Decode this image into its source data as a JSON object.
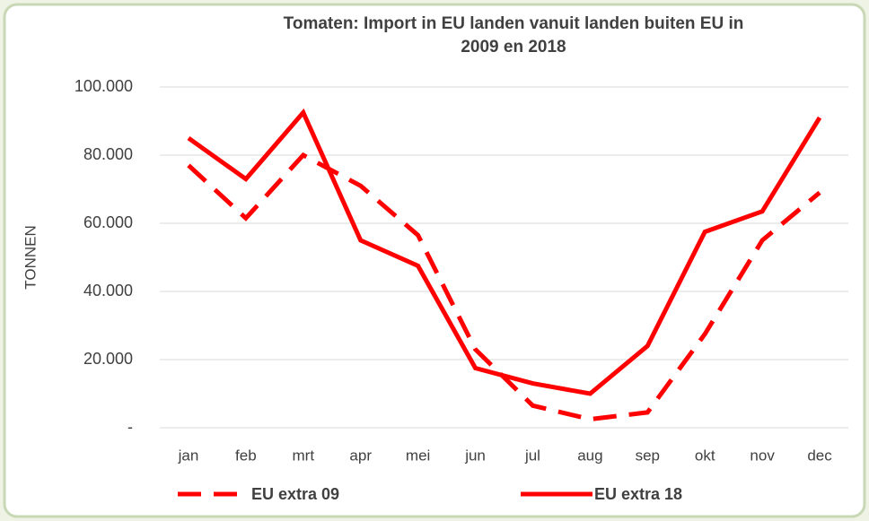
{
  "chart_data": {
    "type": "line",
    "title": "Tomaten: Import in EU landen vanuit landen buiten EU in 2009 en 2018",
    "ylabel": "TONNEN",
    "categories": [
      "jan",
      "feb",
      "mrt",
      "apr",
      "mei",
      "jun",
      "jul",
      "aug",
      "sep",
      "okt",
      "nov",
      "dec"
    ],
    "series": [
      {
        "name": "EU extra 09",
        "color": "#ff0000",
        "dash": true,
        "values": [
          77000,
          61500,
          80000,
          71000,
          56500,
          23000,
          6500,
          2500,
          4500,
          27500,
          55000,
          69000
        ]
      },
      {
        "name": "EU extra 18",
        "color": "#ff0000",
        "dash": false,
        "values": [
          85000,
          73000,
          92500,
          55000,
          47500,
          17500,
          13000,
          10000,
          24000,
          57500,
          63500,
          91000
        ]
      }
    ],
    "ylim": [
      0,
      100000
    ],
    "yticks": [
      {
        "value": 0,
        "label": "-"
      },
      {
        "value": 20000,
        "label": "20.000"
      },
      {
        "value": 40000,
        "label": "40.000"
      },
      {
        "value": 60000,
        "label": "60.000"
      },
      {
        "value": 80000,
        "label": "80.000"
      },
      {
        "value": 100000,
        "label": "100.000"
      }
    ],
    "grid": true,
    "legend": "bottom"
  }
}
